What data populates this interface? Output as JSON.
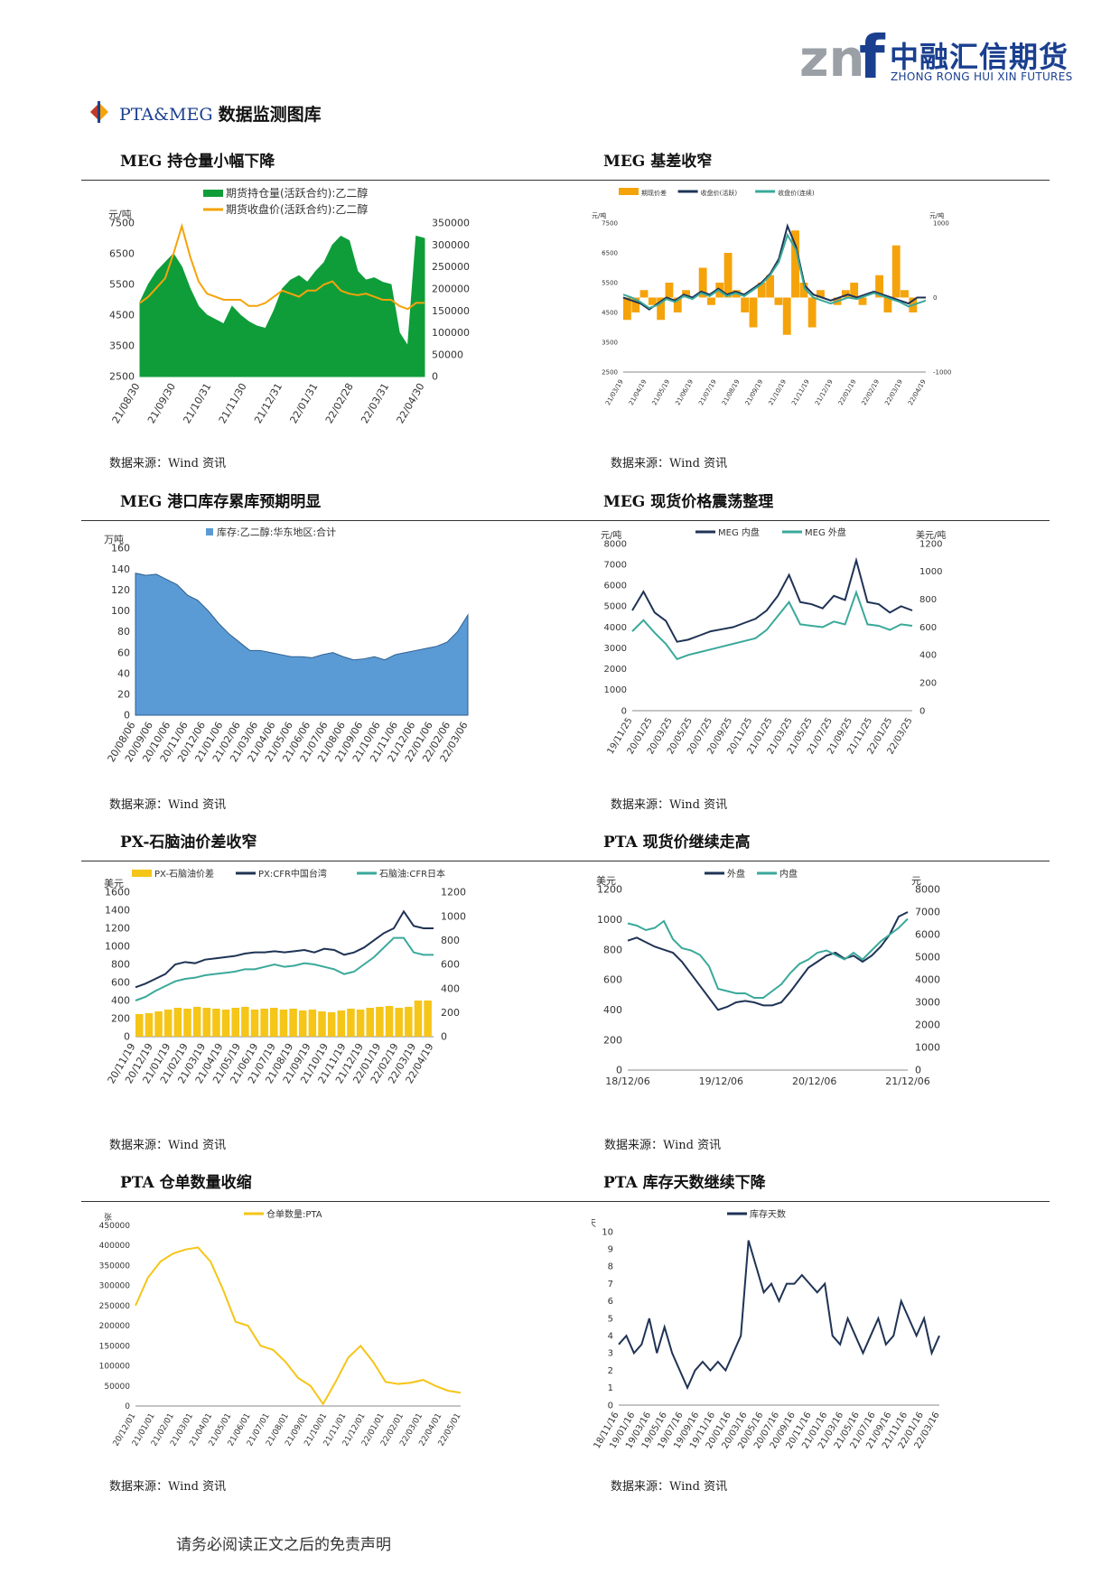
{
  "header": {
    "logo_mark": "znf",
    "company_cn": "中融汇信期货",
    "company_en": "ZHONG RONG HUI XIN FUTURES",
    "section_prefix": "PTA&MEG ",
    "section_title": "数据监测图库",
    "colors": {
      "brand": "#1a3f8f",
      "logo_gray": "#9aa0a6"
    }
  },
  "panels": [
    {
      "title": "MEG 持仓量小幅下降",
      "source": "数据来源：Wind 资讯"
    },
    {
      "title": "MEG 基差收窄",
      "source": "数据来源：Wind 资讯"
    },
    {
      "title": "MEG 港口库存累库预期明显",
      "source": "数据来源：Wind 资讯"
    },
    {
      "title": "MEG 现货价格震荡整理",
      "source": "数据来源：Wind 资讯"
    },
    {
      "title": "PX-石脑油价差收窄",
      "source": "数据来源：Wind 资讯"
    },
    {
      "title": "PTA 现货价继续走高",
      "source": "数据来源：Wind 资讯"
    },
    {
      "title": "PTA 仓单数量收缩",
      "source": "数据来源：Wind 资讯"
    },
    {
      "title": "PTA 库存天数继续下降",
      "source": "数据来源：Wind 资讯"
    }
  ],
  "footer": "请务必阅读正文之后的免责声明",
  "chart_data": [
    {
      "type": "area",
      "ylabel_left": "元/吨",
      "x_ticks": [
        "21/08/30",
        "21/09/30",
        "21/10/31",
        "21/11/30",
        "21/12/31",
        "22/01/31",
        "22/02/28",
        "22/03/31",
        "22/04/30"
      ],
      "y_left_ticks": [
        "7500",
        "6500",
        "5500",
        "4500",
        "3500",
        "2500"
      ],
      "y_right_ticks": [
        "350000",
        "300000",
        "250000",
        "200000",
        "150000",
        "100000",
        "50000",
        "0"
      ],
      "ylim_left": [
        2500,
        7500
      ],
      "ylim_right": [
        0,
        350000
      ],
      "series": [
        {
          "name": "期货持仓量(活跃合约):乙二醇",
          "axis": "right",
          "color": "#0f9d3a",
          "values": [
            170000,
            210000,
            240000,
            260000,
            280000,
            250000,
            200000,
            160000,
            140000,
            130000,
            120000,
            160000,
            140000,
            125000,
            115000,
            110000,
            150000,
            200000,
            220000,
            230000,
            215000,
            240000,
            260000,
            300000,
            320000,
            310000,
            240000,
            220000,
            225000,
            215000,
            210000,
            100000,
            70000,
            320000,
            315000
          ]
        },
        {
          "name": "期货收盘价(活跃合约):乙二醇",
          "axis": "left",
          "color": "#f5a30a",
          "values": [
            4900,
            5100,
            5400,
            5700,
            6500,
            7400,
            6400,
            5600,
            5200,
            5100,
            5000,
            5000,
            5000,
            4800,
            4800,
            4900,
            5100,
            5300,
            5200,
            5100,
            5300,
            5300,
            5500,
            5600,
            5300,
            5200,
            5150,
            5200,
            5100,
            5000,
            5000,
            4800,
            4700,
            4900,
            4900
          ]
        }
      ]
    },
    {
      "type": "line",
      "ylabel_left": "元/吨",
      "ylabel_right": "元/吨",
      "x_ticks": [
        "21/03/19",
        "21/04/19",
        "21/05/19",
        "21/06/19",
        "21/07/19",
        "21/08/19",
        "21/09/19",
        "21/10/19",
        "21/11/19",
        "21/12/19",
        "22/01/19",
        "22/02/19",
        "22/03/19",
        "22/04/19"
      ],
      "y_left_ticks": [
        "7500",
        "6500",
        "5500",
        "4500",
        "3500",
        "2500"
      ],
      "y_right_ticks": [
        "1000",
        "0",
        "-1000"
      ],
      "ylim_left": [
        2500,
        7500
      ],
      "ylim_right": [
        -1000,
        1000
      ],
      "series": [
        {
          "name": "期现价差",
          "axis": "right",
          "color": "#f5a30a",
          "values": [
            -300,
            -200,
            100,
            -100,
            -300,
            200,
            -200,
            100,
            0,
            400,
            -100,
            200,
            600,
            100,
            -200,
            -400,
            200,
            300,
            -100,
            -500,
            900,
            200,
            -400,
            100,
            0,
            -100,
            100,
            200,
            -100,
            0,
            300,
            -200,
            700,
            100,
            -200,
            0
          ]
        },
        {
          "name": "收盘价(活跃)",
          "axis": "left",
          "color": "#1f3355",
          "values": [
            5000,
            4900,
            4800,
            4600,
            4800,
            5000,
            4900,
            5100,
            5000,
            5200,
            5100,
            5300,
            5100,
            5200,
            5100,
            5300,
            5500,
            5800,
            6300,
            7400,
            6700,
            5400,
            5100,
            5000,
            4900,
            5000,
            5100,
            5000,
            5100,
            5200,
            5100,
            5000,
            4900,
            4800,
            5000,
            5000
          ]
        },
        {
          "name": "收盘价(连续)",
          "axis": "left",
          "color": "#3aa99a",
          "values": [
            5100,
            5000,
            4850,
            4650,
            4750,
            4950,
            4850,
            5050,
            4950,
            5150,
            5050,
            5250,
            5050,
            5150,
            5050,
            5250,
            5450,
            5750,
            6200,
            7100,
            6600,
            5300,
            5000,
            4900,
            4800,
            4900,
            5000,
            4950,
            5050,
            5150,
            5050,
            4950,
            4850,
            4700,
            4800,
            4900
          ]
        }
      ]
    },
    {
      "type": "area",
      "title": "库存:乙二醇:华东地区:合计",
      "ylabel": "万吨",
      "x_ticks": [
        "20/08/06",
        "20/09/06",
        "20/10/06",
        "20/11/06",
        "20/12/06",
        "21/01/06",
        "21/02/06",
        "21/03/06",
        "21/04/06",
        "21/05/06",
        "21/06/06",
        "21/07/06",
        "21/08/06",
        "21/09/06",
        "21/10/06",
        "21/11/06",
        "21/12/06",
        "22/01/06",
        "22/02/06",
        "22/03/06"
      ],
      "y_ticks": [
        "160",
        "140",
        "120",
        "100",
        "80",
        "60",
        "40",
        "20",
        "0"
      ],
      "ylim": [
        0,
        160
      ],
      "series": [
        {
          "name": "库存:乙二醇:华东地区:合计",
          "color": "#5b9bd5",
          "values": [
            136,
            134,
            135,
            130,
            125,
            115,
            110,
            100,
            88,
            78,
            70,
            62,
            62,
            60,
            58,
            56,
            56,
            55,
            58,
            60,
            56,
            53,
            54,
            56,
            53,
            58,
            60,
            62,
            64,
            66,
            70,
            80,
            96
          ]
        }
      ]
    },
    {
      "type": "line",
      "ylabel_left": "元/吨",
      "ylabel_right": "美元/吨",
      "x_ticks": [
        "19/11/25",
        "20/01/25",
        "20/03/25",
        "20/05/25",
        "20/07/25",
        "20/09/25",
        "20/11/25",
        "21/01/25",
        "21/03/25",
        "21/05/25",
        "21/07/25",
        "21/09/25",
        "21/11/25",
        "22/01/25",
        "22/03/25"
      ],
      "y_left_ticks": [
        "8000",
        "7000",
        "6000",
        "5000",
        "4000",
        "3000",
        "2000",
        "1000",
        "0"
      ],
      "y_right_ticks": [
        "1200",
        "1000",
        "800",
        "600",
        "400",
        "200",
        "0"
      ],
      "ylim_left": [
        0,
        8000
      ],
      "ylim_right": [
        0,
        1200
      ],
      "series": [
        {
          "name": "MEG 内盘",
          "axis": "left",
          "color": "#1f3355",
          "values": [
            4800,
            5700,
            4700,
            4300,
            3300,
            3400,
            3600,
            3800,
            3900,
            4000,
            4200,
            4400,
            4800,
            5500,
            6500,
            5200,
            5100,
            4900,
            5500,
            5300,
            7200,
            5200,
            5100,
            4700,
            5000,
            4800
          ]
        },
        {
          "name": "MEG 外盘",
          "axis": "right",
          "color": "#3aa99a",
          "values": [
            570,
            650,
            560,
            480,
            370,
            400,
            420,
            440,
            460,
            480,
            500,
            520,
            580,
            680,
            780,
            620,
            610,
            600,
            640,
            620,
            850,
            620,
            610,
            580,
            620,
            610
          ]
        }
      ]
    },
    {
      "type": "bar+line",
      "ylabel_left": "美元",
      "x_ticks": [
        "20/11/19",
        "20/12/19",
        "21/01/19",
        "21/02/19",
        "21/03/19",
        "21/04/19",
        "21/05/19",
        "21/06/19",
        "21/07/19",
        "21/08/19",
        "21/09/19",
        "21/10/19",
        "21/11/19",
        "21/12/19",
        "22/01/19",
        "22/02/19",
        "22/03/19",
        "22/04/19"
      ],
      "y_left_ticks": [
        "1600",
        "1400",
        "1200",
        "1000",
        "800",
        "600",
        "400",
        "200",
        "0"
      ],
      "y_right_ticks": [
        "1200",
        "1000",
        "800",
        "600",
        "400",
        "200",
        "0"
      ],
      "ylim_left": [
        0,
        1600
      ],
      "ylim_right": [
        0,
        1200
      ],
      "series": [
        {
          "name": "PX-石脑油价差",
          "axis": "left",
          "color": "#f5c518",
          "values": [
            250,
            260,
            280,
            300,
            320,
            310,
            330,
            320,
            310,
            300,
            320,
            330,
            300,
            310,
            320,
            300,
            310,
            290,
            300,
            280,
            270,
            290,
            310,
            300,
            320,
            330,
            340,
            320,
            330,
            400,
            400
          ]
        },
        {
          "name": "PX:CFR中国台湾",
          "axis": "right",
          "color": "#1f3355",
          "values": [
            410,
            440,
            480,
            520,
            600,
            620,
            610,
            640,
            650,
            660,
            670,
            690,
            700,
            700,
            710,
            700,
            710,
            720,
            700,
            730,
            720,
            680,
            700,
            740,
            800,
            860,
            900,
            1040,
            920,
            900,
            900
          ]
        },
        {
          "name": "石脑油:CFR日本",
          "axis": "right",
          "color": "#3aa99a",
          "values": [
            300,
            330,
            380,
            420,
            460,
            480,
            490,
            510,
            520,
            530,
            540,
            560,
            560,
            580,
            600,
            580,
            590,
            610,
            600,
            580,
            560,
            520,
            540,
            600,
            660,
            740,
            820,
            820,
            700,
            680,
            680
          ]
        }
      ]
    },
    {
      "type": "line",
      "ylabel_left": "美元",
      "ylabel_right": "元",
      "x_ticks": [
        "18/12/06",
        "19/12/06",
        "20/12/06",
        "21/12/06"
      ],
      "y_left_ticks": [
        "1200",
        "1000",
        "800",
        "600",
        "400",
        "200",
        "0"
      ],
      "y_right_ticks": [
        "8000",
        "7000",
        "6000",
        "5000",
        "4000",
        "3000",
        "2000",
        "1000",
        "0"
      ],
      "ylim_left": [
        0,
        1200
      ],
      "ylim_right": [
        0,
        8000
      ],
      "series": [
        {
          "name": "外盘",
          "axis": "left",
          "color": "#1f3355",
          "values": [
            860,
            880,
            850,
            820,
            800,
            780,
            720,
            640,
            560,
            480,
            400,
            420,
            450,
            460,
            450,
            430,
            430,
            450,
            520,
            600,
            680,
            720,
            760,
            780,
            740,
            760,
            720,
            760,
            820,
            900,
            1020,
            1050
          ]
        },
        {
          "name": "内盘",
          "axis": "right",
          "color": "#3aa99a",
          "values": [
            6500,
            6400,
            6200,
            6300,
            6600,
            5800,
            5400,
            5300,
            5100,
            4600,
            3600,
            3500,
            3400,
            3400,
            3200,
            3200,
            3500,
            3800,
            4300,
            4700,
            4900,
            5200,
            5300,
            5100,
            4900,
            5200,
            4900,
            5300,
            5700,
            6000,
            6300,
            6700
          ]
        }
      ]
    },
    {
      "type": "line",
      "ylabel": "张",
      "x_ticks": [
        "20/12/01",
        "21/01/01",
        "21/02/01",
        "21/03/01",
        "21/04/01",
        "21/05/01",
        "21/06/01",
        "21/07/01",
        "21/08/01",
        "21/09/01",
        "21/10/01",
        "21/11/01",
        "21/12/01",
        "22/01/01",
        "22/02/01",
        "22/03/01",
        "22/04/01",
        "22/05/01"
      ],
      "y_ticks": [
        "450000",
        "400000",
        "350000",
        "300000",
        "250000",
        "200000",
        "150000",
        "100000",
        "50000",
        "0"
      ],
      "ylim": [
        0,
        450000
      ],
      "series": [
        {
          "name": "仓单数量:PTA",
          "color": "#f5c518",
          "values": [
            250000,
            320000,
            360000,
            380000,
            390000,
            395000,
            360000,
            290000,
            210000,
            200000,
            150000,
            140000,
            110000,
            70000,
            50000,
            5000,
            60000,
            120000,
            150000,
            110000,
            60000,
            55000,
            58000,
            65000,
            50000,
            38000,
            33000
          ]
        }
      ]
    },
    {
      "type": "line",
      "ylabel": "天",
      "x_ticks": [
        "18/11/16",
        "19/01/16",
        "19/03/16",
        "19/05/16",
        "19/07/16",
        "19/09/16",
        "19/11/16",
        "20/01/16",
        "20/03/16",
        "20/05/16",
        "20/07/16",
        "20/09/16",
        "20/11/16",
        "21/01/16",
        "21/03/16",
        "21/05/16",
        "21/07/16",
        "21/09/16",
        "21/11/16",
        "22/01/16",
        "22/03/16"
      ],
      "y_ticks": [
        "10",
        "9",
        "8",
        "7",
        "6",
        "5",
        "4",
        "3",
        "2",
        "1",
        "0"
      ],
      "ylim": [
        0,
        10
      ],
      "series": [
        {
          "name": "库存天数",
          "color": "#1f3355",
          "values": [
            3.5,
            4,
            3,
            3.5,
            5,
            3,
            4.5,
            3,
            2,
            1,
            2,
            2.5,
            2,
            2.5,
            2,
            3,
            4,
            9.5,
            8,
            6.5,
            7,
            6,
            7,
            7,
            7.5,
            7,
            6.5,
            7,
            4,
            3.5,
            5,
            4,
            3,
            4,
            5,
            3.5,
            4,
            6,
            5,
            4,
            5,
            3,
            4
          ]
        }
      ]
    }
  ]
}
